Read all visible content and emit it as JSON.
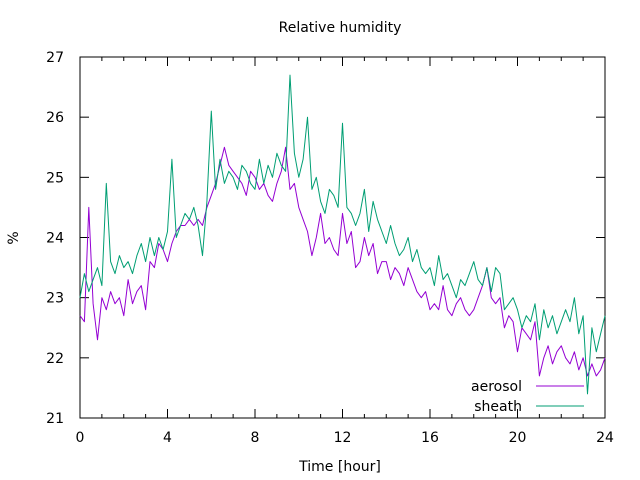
{
  "chart_data": {
    "type": "line",
    "title": "Relative humidity",
    "xlabel": "Time [hour]",
    "ylabel": "%",
    "xlim": [
      0,
      24
    ],
    "ylim": [
      21,
      27
    ],
    "xticks": [
      0,
      4,
      8,
      12,
      16,
      20,
      24
    ],
    "yticks": [
      21,
      22,
      23,
      24,
      25,
      26,
      27
    ],
    "grid": false,
    "legend_position": "bottom-right",
    "series": [
      {
        "name": "aerosol",
        "color": "#9400d3",
        "x": [
          0,
          0.2,
          0.4,
          0.6,
          0.8,
          1,
          1.2,
          1.4,
          1.6,
          1.8,
          2,
          2.2,
          2.4,
          2.6,
          2.8,
          3,
          3.2,
          3.4,
          3.6,
          3.8,
          4,
          4.2,
          4.4,
          4.6,
          4.8,
          5,
          5.2,
          5.4,
          5.6,
          5.8,
          6,
          6.2,
          6.4,
          6.6,
          6.8,
          7,
          7.2,
          7.4,
          7.6,
          7.8,
          8,
          8.2,
          8.4,
          8.6,
          8.8,
          9,
          9.2,
          9.4,
          9.6,
          9.8,
          10,
          10.2,
          10.4,
          10.6,
          10.8,
          11,
          11.2,
          11.4,
          11.6,
          11.8,
          12,
          12.2,
          12.4,
          12.6,
          12.8,
          13,
          13.2,
          13.4,
          13.6,
          13.8,
          14,
          14.2,
          14.4,
          14.6,
          14.8,
          15,
          15.2,
          15.4,
          15.6,
          15.8,
          16,
          16.2,
          16.4,
          16.6,
          16.8,
          17,
          17.2,
          17.4,
          17.6,
          17.8,
          18,
          18.2,
          18.4,
          18.6,
          18.8,
          19,
          19.2,
          19.4,
          19.6,
          19.8,
          20,
          20.2,
          20.4,
          20.6,
          20.8,
          21,
          21.2,
          21.4,
          21.6,
          21.8,
          22,
          22.2,
          22.4,
          22.6,
          22.8,
          23,
          23.2,
          23.4,
          23.6,
          23.8,
          24
        ],
        "y": [
          22.7,
          22.6,
          24.5,
          22.9,
          22.3,
          23.0,
          22.8,
          23.1,
          22.9,
          23.0,
          22.7,
          23.3,
          22.9,
          23.1,
          23.2,
          22.8,
          23.6,
          23.5,
          23.9,
          23.8,
          23.6,
          23.9,
          24.1,
          24.2,
          24.2,
          24.3,
          24.2,
          24.3,
          24.2,
          24.5,
          24.7,
          24.9,
          25.2,
          25.5,
          25.2,
          25.1,
          25.0,
          24.9,
          24.7,
          25.1,
          25.0,
          24.8,
          24.9,
          24.7,
          24.6,
          24.9,
          25.1,
          25.5,
          24.8,
          24.9,
          24.5,
          24.3,
          24.1,
          23.7,
          24.0,
          24.4,
          23.9,
          24.0,
          23.8,
          23.7,
          24.4,
          23.9,
          24.1,
          23.5,
          23.6,
          24.0,
          23.7,
          23.9,
          23.4,
          23.6,
          23.6,
          23.3,
          23.5,
          23.4,
          23.2,
          23.5,
          23.3,
          23.1,
          23.0,
          23.1,
          22.8,
          22.9,
          22.8,
          23.2,
          22.8,
          22.7,
          22.9,
          23.0,
          22.8,
          22.7,
          22.8,
          23.0,
          23.2,
          23.5,
          23.0,
          22.9,
          23.0,
          22.5,
          22.7,
          22.6,
          22.1,
          22.5,
          22.4,
          22.3,
          22.6,
          21.7,
          22.0,
          22.2,
          21.9,
          22.1,
          22.2,
          22.0,
          21.9,
          22.1,
          21.8,
          22.0,
          21.7,
          21.9,
          21.7,
          21.8,
          22.0
        ]
      },
      {
        "name": "sheath",
        "color": "#009e73",
        "x": [
          0,
          0.2,
          0.4,
          0.6,
          0.8,
          1,
          1.2,
          1.4,
          1.6,
          1.8,
          2,
          2.2,
          2.4,
          2.6,
          2.8,
          3,
          3.2,
          3.4,
          3.6,
          3.8,
          4,
          4.2,
          4.4,
          4.6,
          4.8,
          5,
          5.2,
          5.4,
          5.6,
          5.8,
          6,
          6.2,
          6.4,
          6.6,
          6.8,
          7,
          7.2,
          7.4,
          7.6,
          7.8,
          8,
          8.2,
          8.4,
          8.6,
          8.8,
          9,
          9.2,
          9.4,
          9.6,
          9.8,
          10,
          10.2,
          10.4,
          10.6,
          10.8,
          11,
          11.2,
          11.4,
          11.6,
          11.8,
          12,
          12.2,
          12.4,
          12.6,
          12.8,
          13,
          13.2,
          13.4,
          13.6,
          13.8,
          14,
          14.2,
          14.4,
          14.6,
          14.8,
          15,
          15.2,
          15.4,
          15.6,
          15.8,
          16,
          16.2,
          16.4,
          16.6,
          16.8,
          17,
          17.2,
          17.4,
          17.6,
          17.8,
          18,
          18.2,
          18.4,
          18.6,
          18.8,
          19,
          19.2,
          19.4,
          19.6,
          19.8,
          20,
          20.2,
          20.4,
          20.6,
          20.8,
          21,
          21.2,
          21.4,
          21.6,
          21.8,
          22,
          22.2,
          22.4,
          22.6,
          22.8,
          23,
          23.2,
          23.4,
          23.6,
          23.8,
          24
        ],
        "y": [
          23.0,
          23.4,
          23.1,
          23.3,
          23.5,
          23.2,
          24.9,
          23.6,
          23.4,
          23.7,
          23.5,
          23.6,
          23.4,
          23.7,
          23.9,
          23.6,
          24.0,
          23.7,
          24.0,
          23.8,
          24.1,
          25.3,
          24.0,
          24.2,
          24.4,
          24.3,
          24.5,
          24.2,
          23.7,
          24.6,
          26.1,
          24.8,
          25.3,
          24.9,
          25.1,
          25.0,
          24.8,
          25.2,
          25.1,
          24.9,
          24.8,
          25.3,
          24.9,
          25.2,
          25.0,
          25.4,
          25.2,
          25.1,
          26.7,
          25.4,
          25.0,
          25.3,
          26.0,
          24.8,
          25.0,
          24.6,
          24.4,
          24.8,
          24.7,
          24.5,
          25.9,
          24.5,
          24.4,
          24.2,
          24.4,
          24.8,
          24.1,
          24.6,
          24.3,
          24.1,
          23.9,
          24.2,
          23.9,
          23.7,
          23.8,
          24.0,
          23.6,
          23.8,
          23.5,
          23.4,
          23.5,
          23.2,
          23.7,
          23.3,
          23.4,
          23.2,
          23.0,
          23.3,
          23.2,
          23.4,
          23.6,
          23.3,
          23.2,
          23.5,
          23.1,
          23.5,
          23.4,
          22.8,
          22.9,
          23.0,
          22.8,
          22.5,
          22.7,
          22.6,
          22.9,
          22.3,
          22.8,
          22.5,
          22.7,
          22.4,
          22.6,
          22.8,
          22.6,
          23.0,
          22.4,
          22.7,
          21.4,
          22.5,
          22.1,
          22.4,
          22.7
        ]
      }
    ]
  }
}
